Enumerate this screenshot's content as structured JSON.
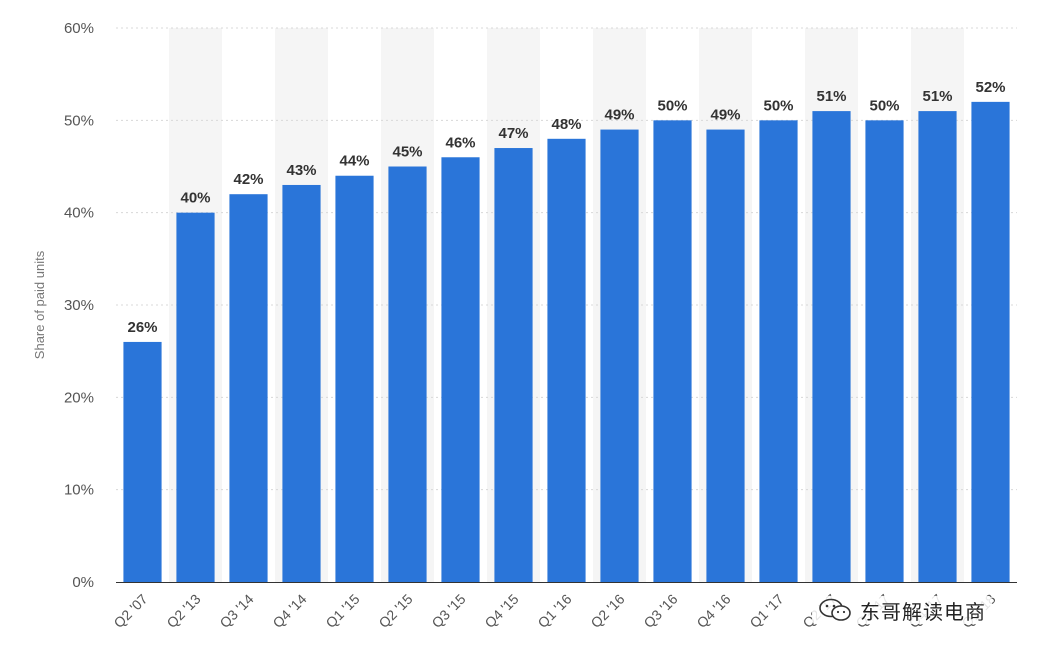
{
  "chart_data": {
    "type": "bar",
    "categories": [
      "Q2 '07",
      "Q2 '13",
      "Q3 '14",
      "Q4 '14",
      "Q1 '15",
      "Q2 '15",
      "Q3 '15",
      "Q4 '15",
      "Q1 '16",
      "Q2 '16",
      "Q3 '16",
      "Q4 '16",
      "Q1 '17",
      "Q2 '17",
      "Q3 '17",
      "Q4 '17",
      "Q1 '18"
    ],
    "values": [
      26,
      40,
      42,
      43,
      44,
      45,
      46,
      47,
      48,
      49,
      50,
      49,
      50,
      51,
      50,
      51,
      52
    ],
    "data_labels": [
      "26%",
      "40%",
      "42%",
      "43%",
      "44%",
      "45%",
      "46%",
      "47%",
      "48%",
      "49%",
      "50%",
      "49%",
      "50%",
      "51%",
      "50%",
      "51%",
      "52%"
    ],
    "y_ticks": [
      0,
      10,
      20,
      30,
      40,
      50,
      60
    ],
    "y_tick_labels": [
      "0%",
      "10%",
      "20%",
      "30%",
      "40%",
      "50%",
      "60%"
    ],
    "ylim": [
      0,
      60
    ],
    "title": "",
    "xlabel": "",
    "ylabel": "Share of paid units",
    "grid": true,
    "legend": "none",
    "bar_color": "#2a75d9",
    "alt_band_color": "#f5f5f5"
  },
  "watermark": {
    "text": "东哥解读电商",
    "icon": "wechat-icon"
  }
}
